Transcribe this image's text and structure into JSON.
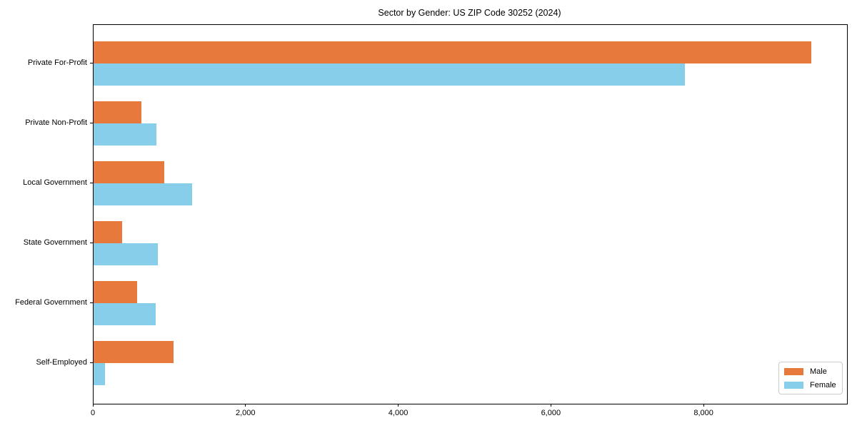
{
  "chart_data": {
    "type": "bar",
    "orientation": "horizontal",
    "title": "Sector by Gender: US ZIP Code 30252 (2024)",
    "categories": [
      "Private For-Profit",
      "Private Non-Profit",
      "Local Government",
      "State Government",
      "Federal Government",
      "Self-Employed"
    ],
    "series": [
      {
        "name": "Male",
        "color": "#e8793d",
        "values": [
          9400,
          625,
          930,
          375,
          570,
          1045
        ]
      },
      {
        "name": "Female",
        "color": "#87ceeb",
        "values": [
          7750,
          825,
          1295,
          840,
          815,
          150
        ]
      }
    ],
    "xlim": [
      0,
      9870
    ],
    "xticks": [
      {
        "value": 0,
        "label": "0"
      },
      {
        "value": 2000,
        "label": "2,000"
      },
      {
        "value": 4000,
        "label": "4,000"
      },
      {
        "value": 6000,
        "label": "6,000"
      },
      {
        "value": 8000,
        "label": "8,000"
      }
    ],
    "xlabel": "",
    "ylabel": "",
    "grid": false,
    "legend_position": "lower right",
    "frame_color": "#000000",
    "background_color": "#ffffff"
  }
}
